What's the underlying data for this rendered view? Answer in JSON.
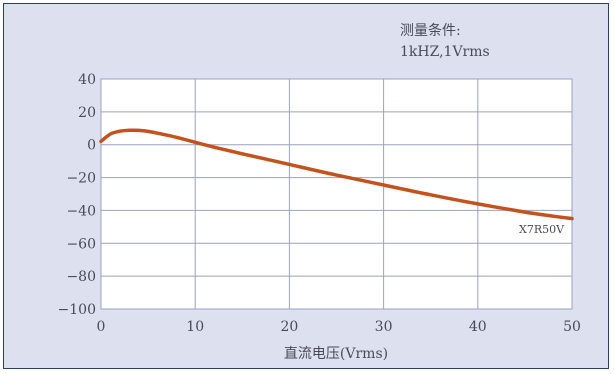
{
  "chart_data": {
    "type": "line",
    "title": "",
    "annotation": [
      "测量条件:",
      "1kHZ,1Vrms"
    ],
    "xlabel": "直流电压(Vrms)",
    "ylabel": "",
    "xlim": [
      0,
      50
    ],
    "ylim": [
      -100,
      40
    ],
    "grid": true,
    "x_ticks": [
      0,
      10,
      20,
      30,
      40,
      50
    ],
    "y_ticks": [
      40,
      20,
      0,
      -20,
      -40,
      -60,
      -80,
      -100
    ],
    "y_tick_labels": [
      "40",
      "20",
      "0",
      "−20",
      "−40",
      "−60",
      "−80",
      "−100"
    ],
    "series": [
      {
        "name": "X7R50V",
        "color": "#c4521c",
        "x": [
          0,
          1,
          2,
          3,
          4,
          5,
          6,
          8,
          10,
          12,
          15,
          20,
          25,
          30,
          35,
          40,
          45,
          48,
          50
        ],
        "y": [
          2,
          6.5,
          8.2,
          8.8,
          8.7,
          8.1,
          7.0,
          4.5,
          1.5,
          -1.5,
          -5.5,
          -12,
          -18.5,
          -24.5,
          -30.5,
          -36,
          -41,
          -43.5,
          -45
        ]
      }
    ]
  }
}
